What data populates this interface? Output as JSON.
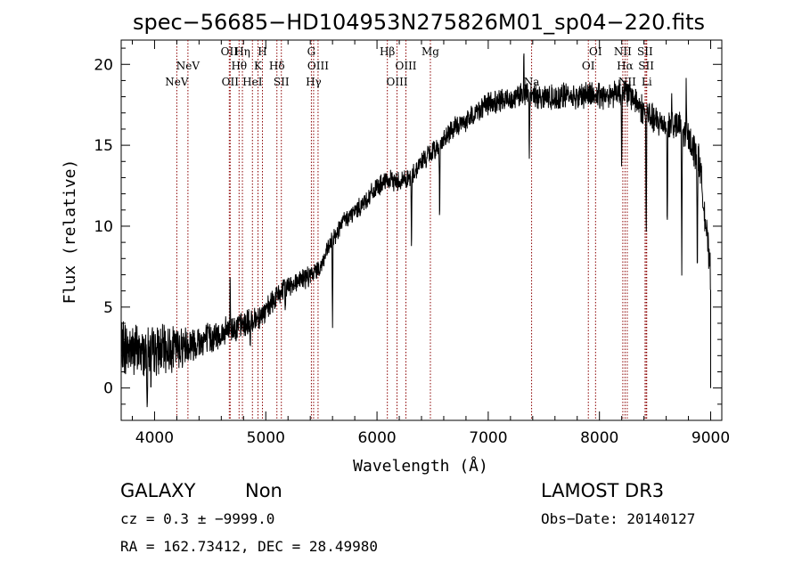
{
  "chart_data": {
    "type": "line",
    "title": "spec−56685−HD104953N275826M01_sp04−220.fits",
    "xlabel": "Wavelength (Å)",
    "ylabel": "Flux (relative)",
    "xlim": [
      3700,
      9100
    ],
    "ylim": [
      -2,
      21.5
    ],
    "x_ticks": [
      4000,
      5000,
      6000,
      7000,
      8000,
      9000
    ],
    "y_ticks": [
      0,
      5,
      10,
      15,
      20
    ],
    "spectrum_anchors": {
      "x": [
        3700,
        3800,
        3900,
        4000,
        4100,
        4200,
        4300,
        4400,
        4500,
        4600,
        4700,
        4800,
        4900,
        5000,
        5100,
        5200,
        5300,
        5400,
        5500,
        5600,
        5700,
        5800,
        5900,
        6000,
        6100,
        6200,
        6300,
        6400,
        6500,
        6600,
        6700,
        6800,
        6900,
        7000,
        7100,
        7200,
        7300,
        7400,
        7500,
        7600,
        7700,
        7800,
        7900,
        8000,
        8100,
        8200,
        8300,
        8400,
        8500,
        8600,
        8700,
        8800,
        8900,
        9000
      ],
      "y": [
        2.5,
        2.4,
        2.2,
        2.3,
        2.4,
        2.5,
        2.7,
        2.9,
        3.1,
        3.3,
        3.7,
        3.9,
        4.3,
        4.7,
        5.7,
        6.3,
        6.7,
        6.9,
        7.6,
        9.2,
        10.3,
        10.9,
        11.6,
        12.4,
        12.8,
        12.8,
        13.0,
        14.0,
        14.6,
        15.3,
        16.1,
        16.5,
        17.1,
        17.6,
        17.7,
        17.9,
        18.2,
        18.1,
        18.0,
        17.9,
        18.1,
        18.0,
        18.2,
        18.0,
        18.2,
        18.4,
        18.0,
        17.1,
        16.5,
        16.3,
        16.2,
        15.5,
        14.0,
        7.0
      ]
    },
    "noise": [
      1.6,
      0.8,
      0.5,
      0.6,
      0.9
    ],
    "noise_x": [
      3700,
      4600,
      5500,
      7000,
      9100
    ],
    "dips": [
      {
        "x": 3934,
        "depth": 3.0
      },
      {
        "x": 3969,
        "depth": 2.5
      },
      {
        "x": 4861,
        "depth": 2.0
      },
      {
        "x": 5175,
        "depth": 1.5
      },
      {
        "x": 5600,
        "depth": 6.0
      },
      {
        "x": 6310,
        "depth": 5.0
      },
      {
        "x": 6563,
        "depth": 4.5
      },
      {
        "x": 7370,
        "depth": 4.0
      },
      {
        "x": 8200,
        "depth": 5.0
      },
      {
        "x": 8420,
        "depth": 8.0
      },
      {
        "x": 8610,
        "depth": 7.0
      },
      {
        "x": 8740,
        "depth": 9.0
      },
      {
        "x": 8880,
        "depth": 8.0
      }
    ],
    "spikes": [
      {
        "x": 4680,
        "height": 3.5
      },
      {
        "x": 7320,
        "height": 2.5
      },
      {
        "x": 8650,
        "height": 2.0
      },
      {
        "x": 8780,
        "height": 3.0
      }
    ],
    "emission_lines": [
      {
        "wavelength": 4200,
        "label": "NeV",
        "row": 2
      },
      {
        "wavelength": 4300,
        "label": "NeV",
        "row": 1
      },
      {
        "wavelength": 4672,
        "label": "OII",
        "row": 0
      },
      {
        "wavelength": 4680,
        "label": "OII",
        "row": 2
      },
      {
        "wavelength": 4760,
        "label": "Hθ",
        "row": 1
      },
      {
        "wavelength": 4790,
        "label": "Hη",
        "row": 0
      },
      {
        "wavelength": 4880,
        "label": "HeI",
        "row": 2
      },
      {
        "wavelength": 4930,
        "label": "K",
        "row": 1
      },
      {
        "wavelength": 4970,
        "label": "H",
        "row": 0
      },
      {
        "wavelength": 5100,
        "label": "Hδ",
        "row": 1
      },
      {
        "wavelength": 5140,
        "label": "SII",
        "row": 2
      },
      {
        "wavelength": 5410,
        "label": "G",
        "row": 0
      },
      {
        "wavelength": 5430,
        "label": "Hγ",
        "row": 2
      },
      {
        "wavelength": 5470,
        "label": "OIII",
        "row": 1
      },
      {
        "wavelength": 6093,
        "label": "Hβ",
        "row": 0
      },
      {
        "wavelength": 6180,
        "label": "OIII",
        "row": 2
      },
      {
        "wavelength": 6260,
        "label": "OIII",
        "row": 1
      },
      {
        "wavelength": 6480,
        "label": "Mg",
        "row": 0
      },
      {
        "wavelength": 7390,
        "label": "Na",
        "row": 2
      },
      {
        "wavelength": 7900,
        "label": "OI",
        "row": 1
      },
      {
        "wavelength": 7965,
        "label": "OI",
        "row": 0
      },
      {
        "wavelength": 8210,
        "label": "NII",
        "row": 0
      },
      {
        "wavelength": 8230,
        "label": "Hα",
        "row": 1
      },
      {
        "wavelength": 8250,
        "label": "NII",
        "row": 2
      },
      {
        "wavelength": 8410,
        "label": "SII",
        "row": 0
      },
      {
        "wavelength": 8420,
        "label": "SII",
        "row": 1
      },
      {
        "wavelength": 8425,
        "label": "Li",
        "row": 2
      }
    ]
  },
  "info": {
    "object_class": "GALAXY",
    "subclass": "Non",
    "survey": "LAMOST DR3",
    "redshift": "cz = 0.3 ± −9999.0",
    "obs_date": "Obs−Date: 20140127",
    "coords": "RA = 162.73412, DEC =  28.49980"
  },
  "colors": {
    "spectrum": "#000000",
    "line_markers": "#8b0000",
    "axes": "#000000"
  }
}
